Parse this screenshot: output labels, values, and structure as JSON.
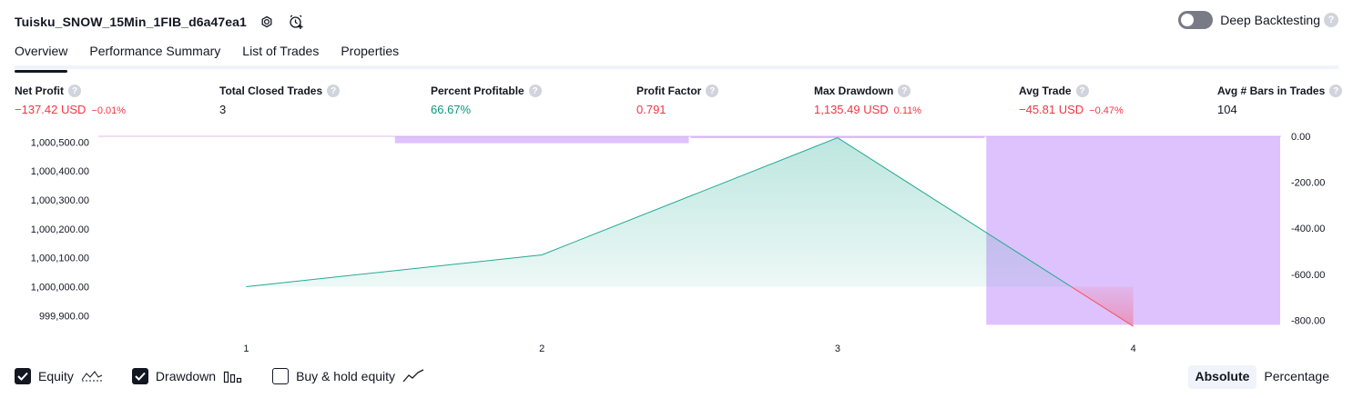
{
  "header": {
    "strategy_name": "Tuisku_SNOW_15Min_1FIB_d6a47ea1",
    "deep_backtesting_label": "Deep Backtesting",
    "deep_backtesting_enabled": false,
    "help_glyph": "?"
  },
  "tabs": [
    {
      "label": "Overview",
      "active": true
    },
    {
      "label": "Performance Summary",
      "active": false
    },
    {
      "label": "List of Trades",
      "active": false
    },
    {
      "label": "Properties",
      "active": false
    }
  ],
  "metrics": [
    {
      "label": "Net Profit",
      "value": "−137.42 USD",
      "percent": "−0.01%",
      "color": "#f23645"
    },
    {
      "label": "Total Closed Trades",
      "value": "3",
      "percent": "",
      "color": "#131722"
    },
    {
      "label": "Percent Profitable",
      "value": "66.67%",
      "percent": "",
      "color": "#089981"
    },
    {
      "label": "Profit Factor",
      "value": "0.791",
      "percent": "",
      "color": "#f23645"
    },
    {
      "label": "Max Drawdown",
      "value": "1,135.49 USD",
      "percent": "0.11%",
      "color": "#f23645"
    },
    {
      "label": "Avg Trade",
      "value": "−45.81 USD",
      "percent": "−0.47%",
      "color": "#f23645"
    },
    {
      "label": "Avg # Bars in Trades",
      "value": "104",
      "percent": "",
      "color": "#131722"
    }
  ],
  "chart_data": {
    "type": "line",
    "x_ticks": [
      "1",
      "2",
      "3",
      "4"
    ],
    "left_axis": {
      "ticks": [
        "1,000,500.00",
        "1,000,400.00",
        "1,000,300.00",
        "1,000,200.00",
        "1,000,100.00",
        "1,000,000.00",
        "999,900.00"
      ],
      "tick_values": [
        1000500,
        1000400,
        1000300,
        1000200,
        1000100,
        1000000,
        999900
      ],
      "range": [
        999860,
        1000520
      ]
    },
    "right_axis": {
      "ticks": [
        "0.00",
        "-200.00",
        "-400.00",
        "-600.00",
        "-800.00"
      ],
      "tick_values": [
        0,
        -200,
        -400,
        -600,
        -800
      ],
      "range": [
        -830,
        0
      ]
    },
    "equity": {
      "x": [
        1,
        2,
        3,
        4
      ],
      "y": [
        1000000,
        1000110,
        1000515,
        999863
      ],
      "baseline": 1000000,
      "line_color": "#22ab94",
      "loss_color": "#f7525f"
    },
    "drawdown": {
      "x_centers": [
        2,
        3,
        4
      ],
      "values": [
        -30,
        -8,
        -820
      ],
      "color": "#c899fb"
    },
    "top_line_color": "#e1bee7"
  },
  "legend": {
    "equity": {
      "label": "Equity",
      "checked": true
    },
    "drawdown": {
      "label": "Drawdown",
      "checked": true
    },
    "buy_hold": {
      "label": "Buy & hold equity",
      "checked": false
    }
  },
  "modes": [
    {
      "label": "Absolute",
      "active": true
    },
    {
      "label": "Percentage",
      "active": false
    }
  ],
  "icon_names": [
    "settings-icon",
    "add-alert-icon",
    "help-icon",
    "checkmark-icon",
    "equity-line-icon",
    "drawdown-bars-icon",
    "buy-hold-line-icon"
  ]
}
